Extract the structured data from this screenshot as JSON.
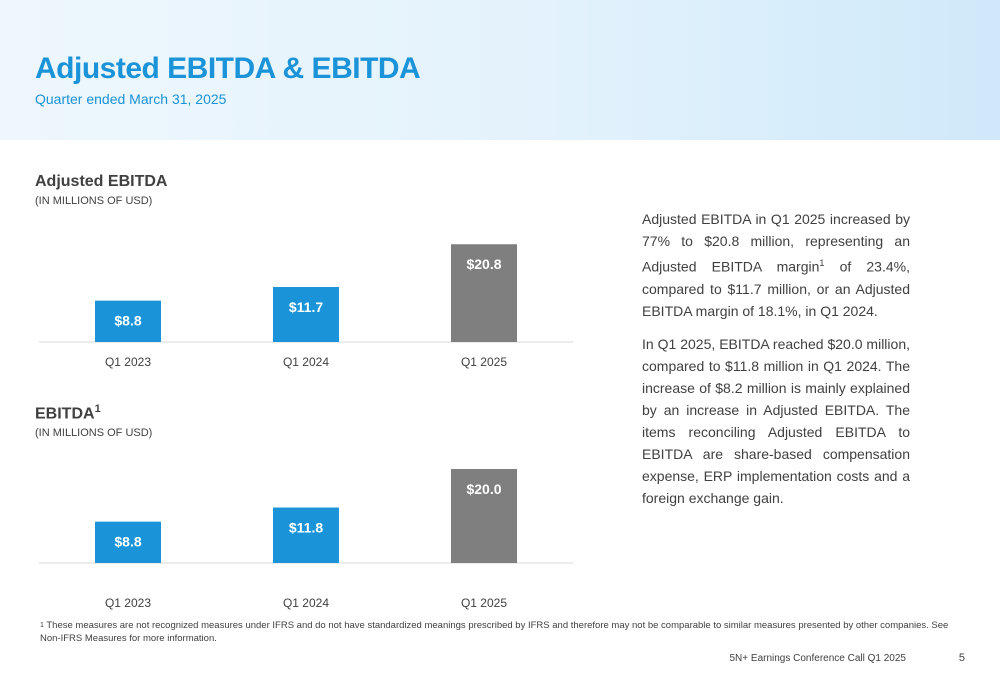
{
  "header": {
    "title": "Adjusted EBITDA & EBITDA",
    "subtitle": "Quarter ended March 31, 2025"
  },
  "colors": {
    "accent_blue": "#1a93d8",
    "bar_blue": "#1a93d8",
    "bar_gray": "#7f7f7f",
    "text": "#404040"
  },
  "chart_data": [
    {
      "type": "bar",
      "title": "Adjusted EBITDA",
      "unit": "(IN MILLIONS OF USD)",
      "categories": [
        "Q1 2023",
        "Q1 2024",
        "Q1 2025"
      ],
      "values": [
        8.8,
        11.7,
        20.8
      ],
      "labels": [
        "$8.8",
        "$11.7",
        "$20.8"
      ],
      "bar_colors": [
        "#1a93d8",
        "#1a93d8",
        "#7f7f7f"
      ],
      "ylim": [
        0,
        22
      ]
    },
    {
      "type": "bar",
      "title": "EBITDA",
      "title_superscript": "1",
      "unit": "(IN MILLIONS OF USD)",
      "categories": [
        "Q1 2023",
        "Q1 2024",
        "Q1 2025"
      ],
      "values": [
        8.8,
        11.8,
        20.0
      ],
      "labels": [
        "$8.8",
        "$11.8",
        "$20.0"
      ],
      "bar_colors": [
        "#1a93d8",
        "#1a93d8",
        "#7f7f7f"
      ],
      "ylim": [
        0,
        22
      ]
    }
  ],
  "commentary": {
    "p1_before": "Adjusted EBITDA in Q1 2025 increased by 77% to $20.8 million, representing an Adjusted EBITDA margin",
    "p1_sup": "1",
    "p1_after": " of 23.4%, compared to $11.7 million, or an Adjusted EBITDA margin of 18.1%, in Q1 2024.",
    "p2": "In Q1 2025, EBITDA reached $20.0 million, compared to $11.8 million in Q1 2024. The increase of $8.2 million is mainly explained by an increase in Adjusted EBITDA. The items reconciling Adjusted EBITDA to EBITDA are share-based compensation expense, ERP implementation costs and a foreign exchange gain."
  },
  "footnote": {
    "mark": "1",
    "text": "These measures are not recognized measures under IFRS and do not have standardized meanings prescribed by IFRS and therefore may not be comparable to similar measures presented by other companies. See Non-IFRS Measures for more information."
  },
  "footer": {
    "text": "5N+ Earnings Conference Call Q1 2025",
    "page_number": "5"
  }
}
